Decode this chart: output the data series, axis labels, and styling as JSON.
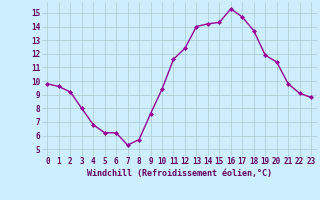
{
  "x": [
    0,
    1,
    2,
    3,
    4,
    5,
    6,
    7,
    8,
    9,
    10,
    11,
    12,
    13,
    14,
    15,
    16,
    17,
    18,
    19,
    20,
    21,
    22,
    23
  ],
  "y": [
    9.8,
    9.6,
    9.2,
    8.0,
    6.8,
    6.2,
    6.2,
    5.3,
    5.7,
    7.6,
    9.4,
    11.6,
    12.4,
    14.0,
    14.2,
    14.3,
    15.3,
    14.7,
    13.7,
    11.9,
    11.4,
    9.8,
    9.1,
    8.8
  ],
  "line_color": "#990099",
  "marker": "D",
  "marker_size": 2.0,
  "linewidth": 1.0,
  "xlabel": "Windchill (Refroidissement éolien,°C)",
  "xlabel_fontsize": 6.0,
  "xlabel_color": "#660066",
  "xtick_labels": [
    "0",
    "1",
    "2",
    "3",
    "4",
    "5",
    "6",
    "7",
    "8",
    "9",
    "10",
    "11",
    "12",
    "13",
    "14",
    "15",
    "16",
    "17",
    "18",
    "19",
    "20",
    "21",
    "22",
    "23"
  ],
  "ytick_labels": [
    "5",
    "6",
    "7",
    "8",
    "9",
    "10",
    "11",
    "12",
    "13",
    "14",
    "15"
  ],
  "ylim": [
    4.5,
    15.8
  ],
  "xlim": [
    -0.5,
    23.5
  ],
  "bg_color": "#cceeff",
  "grid_color": "#aacccc",
  "tick_color": "#660066",
  "tick_fontsize": 5.5
}
